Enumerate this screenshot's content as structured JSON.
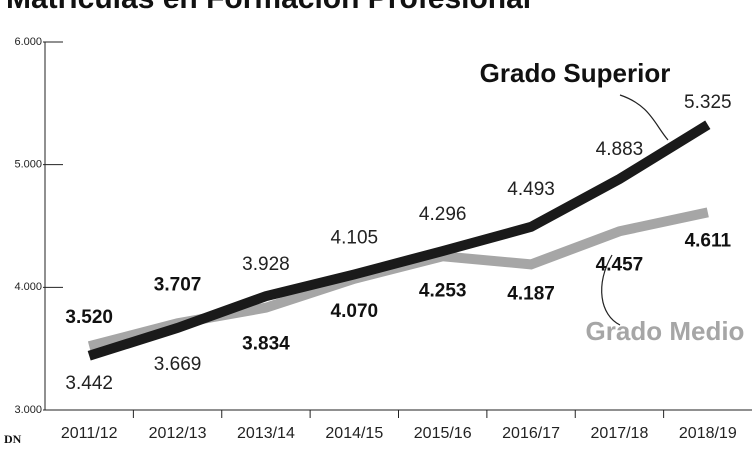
{
  "chart_data": {
    "type": "line",
    "title": "Matrículas en Formación Profesional",
    "source": "DN",
    "categories": [
      "2011/12",
      "2012/13",
      "2013/14",
      "2014/15",
      "2015/16",
      "2016/17",
      "2017/18",
      "2018/19"
    ],
    "series": [
      {
        "name": "Grado Superior",
        "color": "#1a1a1a",
        "values": [
          3442,
          3669,
          3928,
          4105,
          4296,
          4493,
          4883,
          5325
        ],
        "value_labels": [
          "3.442",
          "3.669",
          "3.928",
          "4.105",
          "4.296",
          "4.493",
          "4.883",
          "5.325"
        ]
      },
      {
        "name": "Grado Medio",
        "color": "#a6a6a6",
        "values": [
          3520,
          3707,
          3834,
          4070,
          4253,
          4187,
          4457,
          4611
        ],
        "value_labels": [
          "3.520",
          "3.707",
          "3.834",
          "4.070",
          "4.253",
          "4.187",
          "4.457",
          "4.611"
        ]
      }
    ],
    "ylim": [
      3000,
      6000
    ],
    "yticks": [
      {
        "value": 3000,
        "label": "3.000"
      },
      {
        "value": 4000,
        "label": "4.000"
      },
      {
        "value": 5000,
        "label": "5.000"
      },
      {
        "value": 6000,
        "label": "6.000"
      }
    ]
  }
}
